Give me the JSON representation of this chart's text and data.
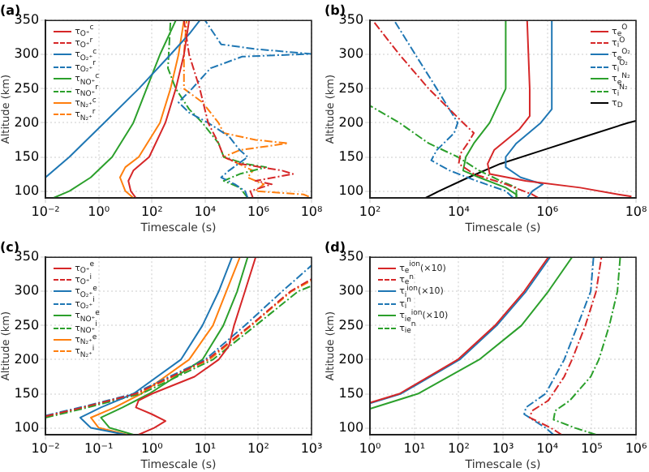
{
  "chart_data": [
    {
      "type": "line",
      "title": "(a)",
      "xlabel": "Timescale (s)",
      "ylabel": "Altitude (km)",
      "log": "x",
      "grid": true,
      "legend": "top left",
      "xlim": [
        0.01,
        100000000
      ],
      "ylim": [
        90,
        350
      ],
      "xticks": [
        {
          "value": 0.01,
          "label": "10⁻²"
        },
        {
          "value": 1,
          "label": "10⁰"
        },
        {
          "value": 100,
          "label": "10²"
        },
        {
          "value": 10000,
          "label": "10⁴"
        },
        {
          "value": 1000000,
          "label": "10⁶"
        },
        {
          "value": 100000000,
          "label": "10⁸"
        }
      ],
      "yticks": [
        100,
        150,
        200,
        250,
        300,
        350
      ],
      "series": [
        {
          "name": "τ$_{O⁺}$$^{c}$",
          "color": "#d62728",
          "line_style": "solid",
          "x": [
            25,
            16,
            13,
            20,
            79,
            320,
            790,
            1600,
            2500
          ],
          "values": [
            90,
            100,
            115,
            130,
            150,
            200,
            250,
            300,
            350
          ]
        },
        {
          "name": "τ$_{O⁺}$$^{r}$",
          "color": "#d62728",
          "line_style": "dashed",
          "x": [
            630000.0,
            500000.0,
            3200000.0,
            790000.0,
            20000000.0,
            7900000.0,
            200000.0,
            50000.0,
            32000.0,
            13000.0,
            6300,
            2500,
            1600
          ],
          "values": [
            90,
            100,
            110,
            115,
            125,
            130,
            140,
            150,
            170,
            200,
            250,
            300,
            350
          ]
        },
        {
          "name": "τ$_{O₂⁺}$$^{c}$",
          "color": "#1f77b4",
          "line_style": "solid",
          "x": [
            0.01,
            0.079,
            1.6,
            32,
            500,
            2500,
            6300
          ],
          "values": [
            120,
            150,
            200,
            250,
            300,
            330,
            350
          ]
        },
        {
          "name": "τ$_{O₂⁺}$$^{r}$",
          "color": "#1f77b4",
          "line_style": "dashed",
          "x": [
            400000.0,
            320000.0,
            130000.0,
            40000.0,
            79000.0,
            400000.0,
            200000.0,
            79000.0,
            13000.0,
            2500,
            1000,
            3200,
            16000.0,
            250000.0,
            100000000.0,
            790000.0,
            40000.0,
            10000.0
          ],
          "values": [
            90,
            100,
            110,
            120,
            130,
            150,
            160,
            180,
            200,
            215,
            230,
            250,
            280,
            297,
            301,
            308,
            315,
            350
          ]
        },
        {
          "name": "τ$_{NO⁺}$$^{c}$",
          "color": "#2ca02c",
          "line_style": "solid",
          "x": [
            0.02,
            0.079,
            0.5,
            3.2,
            20,
            63,
            200,
            790
          ],
          "values": [
            90,
            100,
            120,
            150,
            200,
            250,
            300,
            350
          ]
        },
        {
          "name": "τ$_{NO⁺}$$^{r}$",
          "color": "#2ca02c",
          "line_style": "dashed",
          "x": [
            400000.0,
            320000.0,
            200000.0,
            50000.0,
            200000.0,
            2000000.0,
            320000.0,
            50000.0,
            32000.0,
            7900,
            2500,
            790,
            400,
            500
          ],
          "values": [
            90,
            95,
            105,
            115,
            125,
            135,
            140,
            150,
            170,
            200,
            220,
            250,
            280,
            350
          ]
        },
        {
          "name": "τ$_{N₂⁺}$$^{c}$",
          "color": "#ff7f0e",
          "line_style": "solid",
          "x": [
            20,
            10,
            6.3,
            10,
            32,
            200,
            500,
            1000,
            1600
          ],
          "values": [
            90,
            100,
            120,
            135,
            150,
            200,
            250,
            300,
            350
          ]
        },
        {
          "name": "τ$_{N₂⁺}$$^{r}$",
          "color": "#ff7f0e",
          "line_style": "dashed",
          "x": [
            79000000.0,
            50000000.0,
            790000.0,
            1600000.0,
            400000.0,
            630000.0,
            50000.0,
            200000.0,
            13000000.0,
            790000.0,
            50000.0,
            32000.0,
            7900,
            1600,
            1600,
            2000
          ],
          "values": [
            92,
            95,
            100,
            110,
            120,
            130,
            150,
            160,
            170,
            175,
            185,
            200,
            230,
            250,
            300,
            350
          ]
        }
      ]
    },
    {
      "type": "line",
      "title": "(b)",
      "xlabel": "Timescale (s)",
      "ylabel": "Altitude (km)",
      "log": "x",
      "grid": true,
      "legend": "top right",
      "xlim": [
        100,
        100000000
      ],
      "ylim": [
        90,
        350
      ],
      "xticks": [
        {
          "value": 100,
          "label": "10²"
        },
        {
          "value": 10000,
          "label": "10⁴"
        },
        {
          "value": 1000000,
          "label": "10⁶"
        },
        {
          "value": 100000000,
          "label": "10⁸"
        }
      ],
      "yticks": [
        100,
        150,
        200,
        250,
        300,
        350
      ],
      "series": [
        {
          "name": "τ$_{e}$$^{O}$",
          "color": "#d62728",
          "line_style": "solid",
          "x": [
            79000000.0,
            40000000.0,
            5500000.0,
            320000.0,
            50000.0,
            45000.0,
            63000.0,
            230000.0,
            400000.0,
            400000.0,
            350000.0
          ],
          "values": [
            92,
            95,
            105,
            115,
            125,
            140,
            160,
            190,
            210,
            250,
            350
          ]
        },
        {
          "name": "τ$_{i}$$^{O}$",
          "color": "#d62728",
          "line_style": "dashed",
          "x": [
            630000.0,
            460000.0,
            115000.0,
            22000.0,
            10000.0,
            11000.0,
            16000.0,
            22000.0,
            12600.0,
            2100,
            460,
            115
          ],
          "values": [
            90,
            95,
            110,
            125,
            140,
            155,
            170,
            185,
            200,
            250,
            300,
            350
          ]
        },
        {
          "name": "τ$_{e}$$^{O₂}$",
          "color": "#1f77b4",
          "line_style": "solid",
          "x": [
            350000.0,
            460000.0,
            790000.0,
            250000.0,
            115000.0,
            115000.0,
            200000.0,
            710000.0,
            1260000.0,
            1260000.0
          ],
          "values": [
            90,
            100,
            110,
            120,
            135,
            150,
            170,
            200,
            220,
            350
          ]
        },
        {
          "name": "τ$_{i}$$^{O₂}$",
          "color": "#1f77b4",
          "line_style": "dashed",
          "x": [
            170000.0,
            115000.0,
            25000.0,
            6300,
            2400,
            3200,
            7900,
            9500,
            3200,
            1050,
            350
          ],
          "values": [
            90,
            100,
            115,
            130,
            145,
            160,
            185,
            200,
            250,
            300,
            350
          ]
        },
        {
          "name": "τ$_{e}$$^{N₂}$",
          "color": "#2ca02c",
          "line_style": "solid",
          "x": [
            200000.0,
            200000.0,
            115000.0,
            29000.0,
            12600.0,
            14500.0,
            22000.0,
            50000.0,
            115000.0,
            115000.0
          ],
          "values": [
            90,
            95,
            105,
            120,
            130,
            150,
            170,
            200,
            250,
            350
          ]
        },
        {
          "name": "τ$_{i}$$^{N₂}$",
          "color": "#2ca02c",
          "line_style": "dashed",
          "x": [
            200000.0,
            200000.0,
            200000.0,
            87000.0,
            29000.0,
            9500,
            2100,
            460,
            100
          ],
          "values": [
            90,
            95,
            105,
            115,
            130,
            150,
            170,
            200,
            225
          ]
        },
        {
          "name": "τ$_{D}$",
          "color": "#000000",
          "line_style": "solid",
          "x": [
            1800,
            3600,
            16600.0,
            87000.0,
            790000.0,
            7200000.0,
            66000000.0,
            100000000.0
          ],
          "values": [
            90,
            100,
            120,
            140,
            160,
            180,
            200,
            203
          ]
        }
      ]
    },
    {
      "type": "line",
      "title": "(c)",
      "xlabel": "Timescale (s)",
      "ylabel": "Altitude (km)",
      "log": "x",
      "grid": true,
      "legend": "top left",
      "xlim": [
        0.01,
        1000
      ],
      "ylim": [
        90,
        350
      ],
      "xticks": [
        {
          "value": 0.01,
          "label": "10⁻²"
        },
        {
          "value": 0.1,
          "label": "10⁻¹"
        },
        {
          "value": 1,
          "label": "10⁰"
        },
        {
          "value": 10,
          "label": "10¹"
        },
        {
          "value": 100,
          "label": "10²"
        },
        {
          "value": 1000,
          "label": "10³"
        }
      ],
      "yticks": [
        100,
        150,
        200,
        250,
        300,
        350
      ],
      "series": [
        {
          "name": "τ$_{O⁺}$$^{e}$",
          "color": "#d62728",
          "line_style": "solid",
          "x": [
            0.56,
            1.1,
            1.8,
            1,
            0.5,
            0.56,
            1,
            6.3,
            18,
            28,
            35,
            56,
            89
          ],
          "values": [
            90,
            100,
            110,
            120,
            130,
            140,
            150,
            175,
            200,
            220,
            250,
            300,
            350
          ]
        },
        {
          "name": "τ$_{O⁺}$$^{i}$",
          "color": "#d62728",
          "line_style": "dashed",
          "x": [
            0.01,
            0.05,
            0.5,
            11,
            71,
            400,
            1000
          ],
          "values": [
            117,
            130,
            150,
            200,
            250,
            300,
            318
          ]
        },
        {
          "name": "τ$_{O₂⁺}$$^{e}$",
          "color": "#1f77b4",
          "line_style": "solid",
          "x": [
            0.32,
            0.071,
            0.045,
            0.11,
            0.45,
            3.5,
            8.9,
            18,
            32
          ],
          "values": [
            90,
            100,
            115,
            130,
            150,
            200,
            250,
            300,
            350
          ]
        },
        {
          "name": "τ$_{O₂⁺}$$^{i}$",
          "color": "#1f77b4",
          "line_style": "dashed",
          "x": [
            0.01,
            0.045,
            0.45,
            10,
            56,
            280,
            1000
          ],
          "values": [
            118,
            130,
            150,
            200,
            250,
            300,
            338
          ]
        },
        {
          "name": "τ$_{NO⁺}$$^{e}$",
          "color": "#2ca02c",
          "line_style": "solid",
          "x": [
            0.45,
            0.16,
            0.11,
            0.28,
            0.89,
            8.9,
            22,
            40,
            63
          ],
          "values": [
            90,
            100,
            115,
            130,
            150,
            200,
            250,
            300,
            350
          ]
        },
        {
          "name": "τ$_{NO⁺}$$^{i}$",
          "color": "#2ca02c",
          "line_style": "dashed",
          "x": [
            0.01,
            0.063,
            0.63,
            14,
            89,
            560,
            1000
          ],
          "values": [
            115,
            130,
            150,
            200,
            250,
            300,
            308
          ]
        },
        {
          "name": "τ$_{N₂⁺}$$^{e}$",
          "color": "#ff7f0e",
          "line_style": "solid",
          "x": [
            0.35,
            0.1,
            0.071,
            0.2,
            0.63,
            5,
            14,
            25,
            45
          ],
          "values": [
            90,
            100,
            115,
            130,
            150,
            200,
            250,
            300,
            350
          ]
        },
        {
          "name": "τ$_{N₂⁺}$$^{i}$",
          "color": "#ff7f0e",
          "line_style": "dashed",
          "x": [
            0.01,
            0.052,
            0.52,
            12,
            74,
            420,
            1000
          ],
          "values": [
            116,
            130,
            150,
            200,
            250,
            300,
            316
          ]
        }
      ]
    },
    {
      "type": "line",
      "title": "(d)",
      "xlabel": "Timescale (s)",
      "ylabel": "Altitude (km)",
      "log": "x",
      "grid": true,
      "legend": "top left",
      "xlim": [
        1,
        1000000
      ],
      "ylim": [
        90,
        350
      ],
      "xticks": [
        {
          "value": 1,
          "label": "10⁰"
        },
        {
          "value": 10,
          "label": "10¹"
        },
        {
          "value": 100,
          "label": "10²"
        },
        {
          "value": 1000,
          "label": "10³"
        },
        {
          "value": 10000,
          "label": "10⁴"
        },
        {
          "value": 100000,
          "label": "10⁵"
        },
        {
          "value": 1000000,
          "label": "10⁶"
        }
      ],
      "yticks": [
        100,
        150,
        200,
        250,
        300,
        350
      ],
      "series": [
        {
          "name": "τ$_{e}$$^{ion}$(×10)",
          "color": "#d62728",
          "line_style": "solid",
          "x": [
            1,
            4.6,
            95,
            660,
            3000,
            10500
          ],
          "values": [
            137,
            150,
            200,
            250,
            300,
            350
          ]
        },
        {
          "name": "τ$_{e}$$^{n}$",
          "color": "#d62728",
          "line_style": "dashed",
          "x": [
            21000,
            12000,
            4000,
            4500,
            10500,
            24000,
            36000,
            72000,
            126000,
            166000
          ],
          "values": [
            90,
            100,
            115,
            125,
            140,
            175,
            200,
            250,
            300,
            350
          ]
        },
        {
          "name": "τ$_{i}$$^{ion}$(×10)",
          "color": "#1f77b4",
          "line_style": "solid",
          "x": [
            1,
            5,
            105,
            720,
            3300,
            11500
          ],
          "values": [
            136,
            150,
            200,
            250,
            300,
            350
          ]
        },
        {
          "name": "τ$_{i}$$^{n}$",
          "color": "#1f77b4",
          "line_style": "dashed",
          "x": [
            13800,
            9100,
            3000,
            3300,
            9100,
            24000,
            48000,
            95000,
            110000
          ],
          "values": [
            90,
            100,
            120,
            130,
            150,
            200,
            250,
            300,
            350
          ]
        },
        {
          "name": "τ$_{ie}$$^{ion}$(×10)",
          "color": "#2ca02c",
          "line_style": "solid",
          "x": [
            1,
            12,
            290,
            2600,
            10500,
            36000
          ],
          "values": [
            128,
            150,
            200,
            250,
            300,
            350
          ]
        },
        {
          "name": "τ$_{ie}$$^{n}$",
          "color": "#2ca02c",
          "line_style": "dashed",
          "x": [
            126000,
            42000,
            13800,
            15000,
            32000,
            95000,
            145000,
            250000,
            380000,
            440000
          ],
          "values": [
            90,
            100,
            112,
            125,
            140,
            175,
            200,
            250,
            300,
            350
          ]
        }
      ]
    }
  ]
}
